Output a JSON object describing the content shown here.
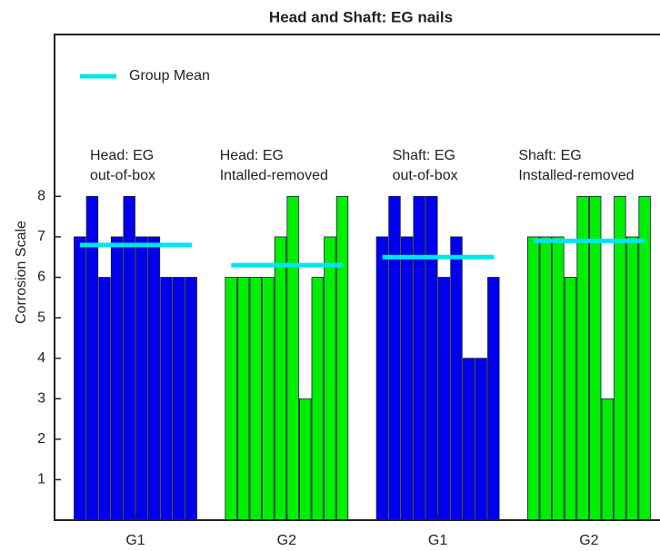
{
  "chart_data": {
    "type": "bar",
    "title": "Head and Shaft: EG nails",
    "y_label": "Corrosion Scale",
    "categories": [
      "G1",
      "G2",
      "G1",
      "G2"
    ],
    "annotations": [
      [
        "Head: EG",
        "out-of-box"
      ],
      [
        "Head: EG",
        "Intalled-removed"
      ],
      [
        "Shaft: EG",
        "out-of-box"
      ],
      [
        "Shaft: EG",
        "Installed-removed"
      ]
    ],
    "group_colors": [
      "#0000ee",
      "#00ee00",
      "#0000ee",
      "#00ee00"
    ],
    "groups": [
      [
        7,
        8,
        6,
        7,
        8,
        7,
        7,
        6,
        6,
        6
      ],
      [
        6,
        6,
        6,
        6,
        7,
        8,
        3,
        6,
        7,
        8
      ],
      [
        7,
        8,
        7,
        8,
        8,
        6,
        7,
        4,
        4,
        6
      ],
      [
        7,
        7,
        7,
        6,
        8,
        8,
        3,
        8,
        7,
        8
      ]
    ],
    "mean": {
      "name": "Group Mean",
      "color": "#00e5ee",
      "values": [
        6.8,
        6.3,
        6.5,
        6.9
      ]
    },
    "ylim": [
      0,
      12
    ],
    "yticks": [
      1,
      2,
      3,
      4,
      5,
      6,
      7,
      8
    ],
    "legend": "upper left"
  }
}
